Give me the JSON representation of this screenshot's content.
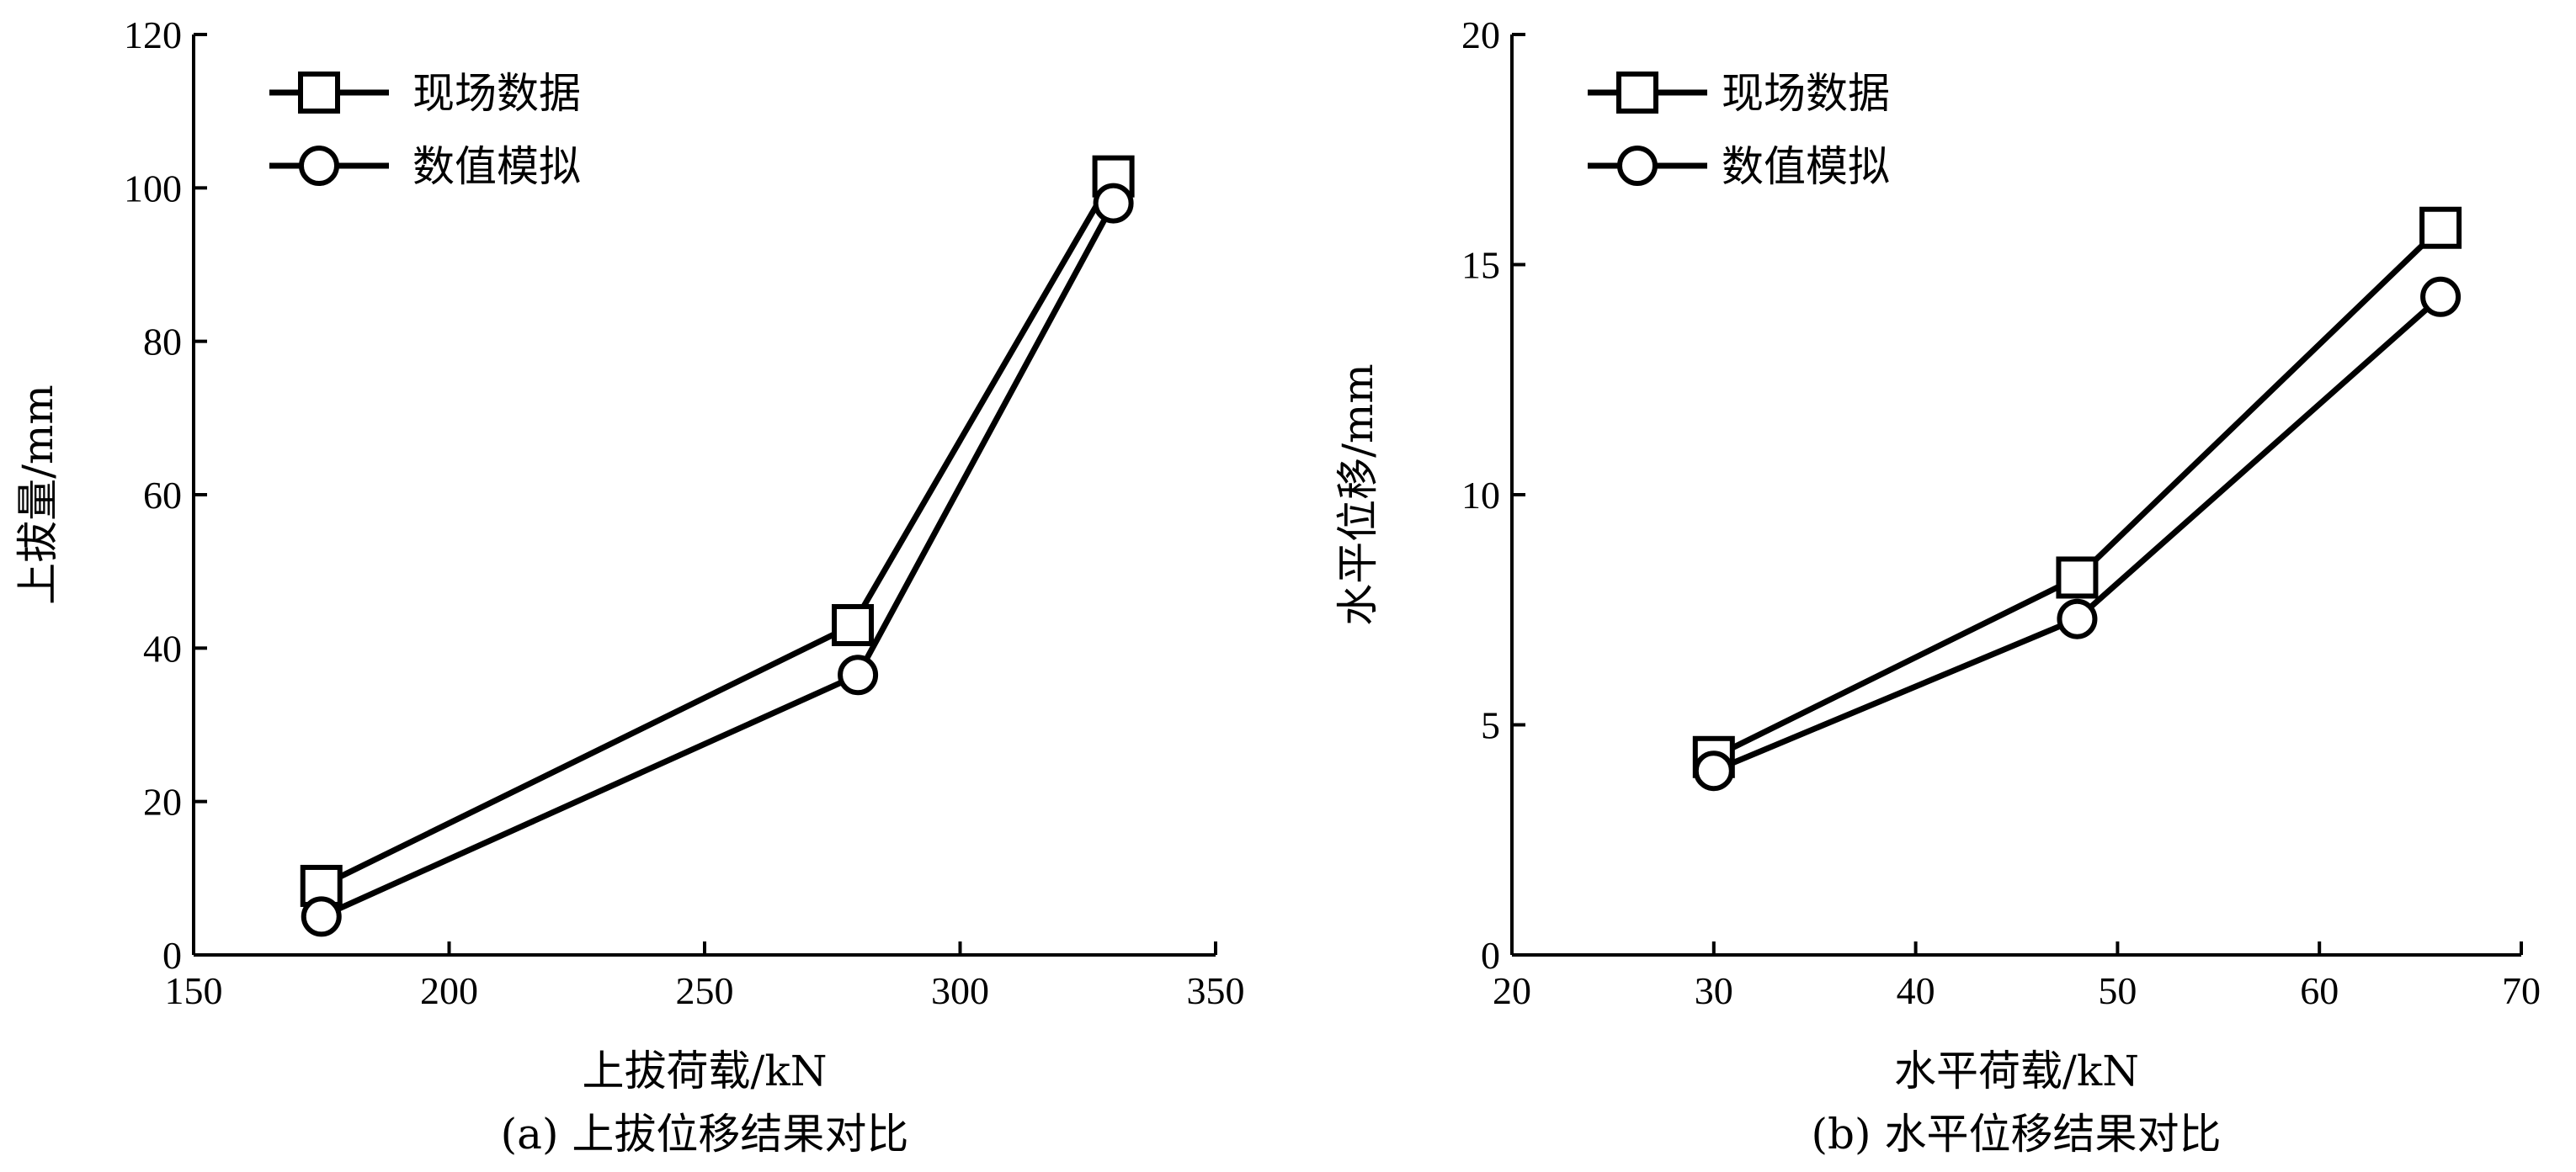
{
  "chart_data": [
    {
      "type": "line",
      "id": "a",
      "xlabel": "上拔荷载/kN",
      "ylabel": "上拔量/mm",
      "caption": "(a) 上拔位移结果对比",
      "xlim": [
        150,
        350
      ],
      "ylim": [
        0,
        120
      ],
      "xticks": [
        150,
        200,
        250,
        300,
        350
      ],
      "yticks": [
        0,
        20,
        40,
        60,
        80,
        100,
        120
      ],
      "legend_position": "top-left",
      "grid": false,
      "series": [
        {
          "name": "现场数据",
          "marker": "square",
          "x": [
            175,
            279,
            330
          ],
          "y": [
            9,
            43,
            101.5
          ]
        },
        {
          "name": "数值模拟",
          "marker": "circle",
          "x": [
            175,
            280,
            330
          ],
          "y": [
            5,
            36.5,
            98
          ]
        }
      ]
    },
    {
      "type": "line",
      "id": "b",
      "xlabel": "水平荷载/kN",
      "ylabel": "水平位移/mm",
      "caption": "(b) 水平位移结果对比",
      "xlim": [
        20,
        70
      ],
      "ylim": [
        0,
        20
      ],
      "xticks": [
        20,
        30,
        40,
        50,
        60,
        70
      ],
      "yticks": [
        0,
        5,
        10,
        15,
        20
      ],
      "legend_position": "top-left",
      "grid": false,
      "series": [
        {
          "name": "现场数据",
          "marker": "square",
          "x": [
            30,
            48,
            66
          ],
          "y": [
            4.3,
            8.2,
            15.8
          ]
        },
        {
          "name": "数值模拟",
          "marker": "circle",
          "x": [
            30,
            48,
            66
          ],
          "y": [
            4.0,
            7.3,
            14.3
          ]
        }
      ]
    }
  ]
}
